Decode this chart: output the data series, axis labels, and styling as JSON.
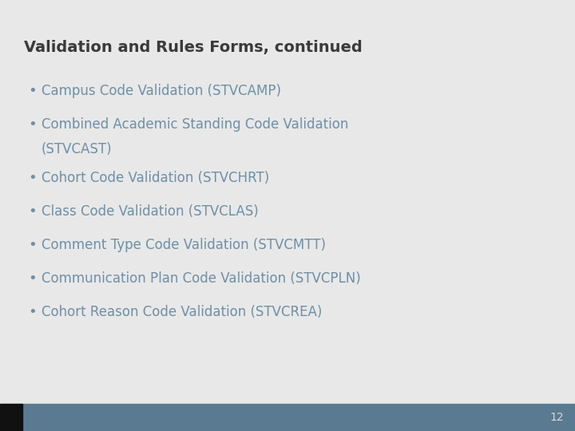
{
  "title": "Validation and Rules Forms, continued",
  "title_color": "#3a3a3a",
  "title_fontsize": 14,
  "bullet_items": [
    "Campus Code Validation (STVCAMP)",
    "Combined Academic Standing Code Validation\n(STVCAST)",
    "Cohort Code Validation (STVCHRT)",
    "Class Code Validation (STVCLAS)",
    "Comment Type Code Validation (STVCMTT)",
    "Communication Plan Code Validation (STVCPLN)",
    "Cohort Reason Code Validation (STVCREA)"
  ],
  "bullet_color": "#6e8fa6",
  "bullet_fontsize": 12,
  "bg_color": "#e8e8e8",
  "footer_bar_color": "#5a7a92",
  "footer_black_color": "#111111",
  "page_number": "12",
  "page_num_color": "#d8d8d8",
  "page_num_fontsize": 10
}
